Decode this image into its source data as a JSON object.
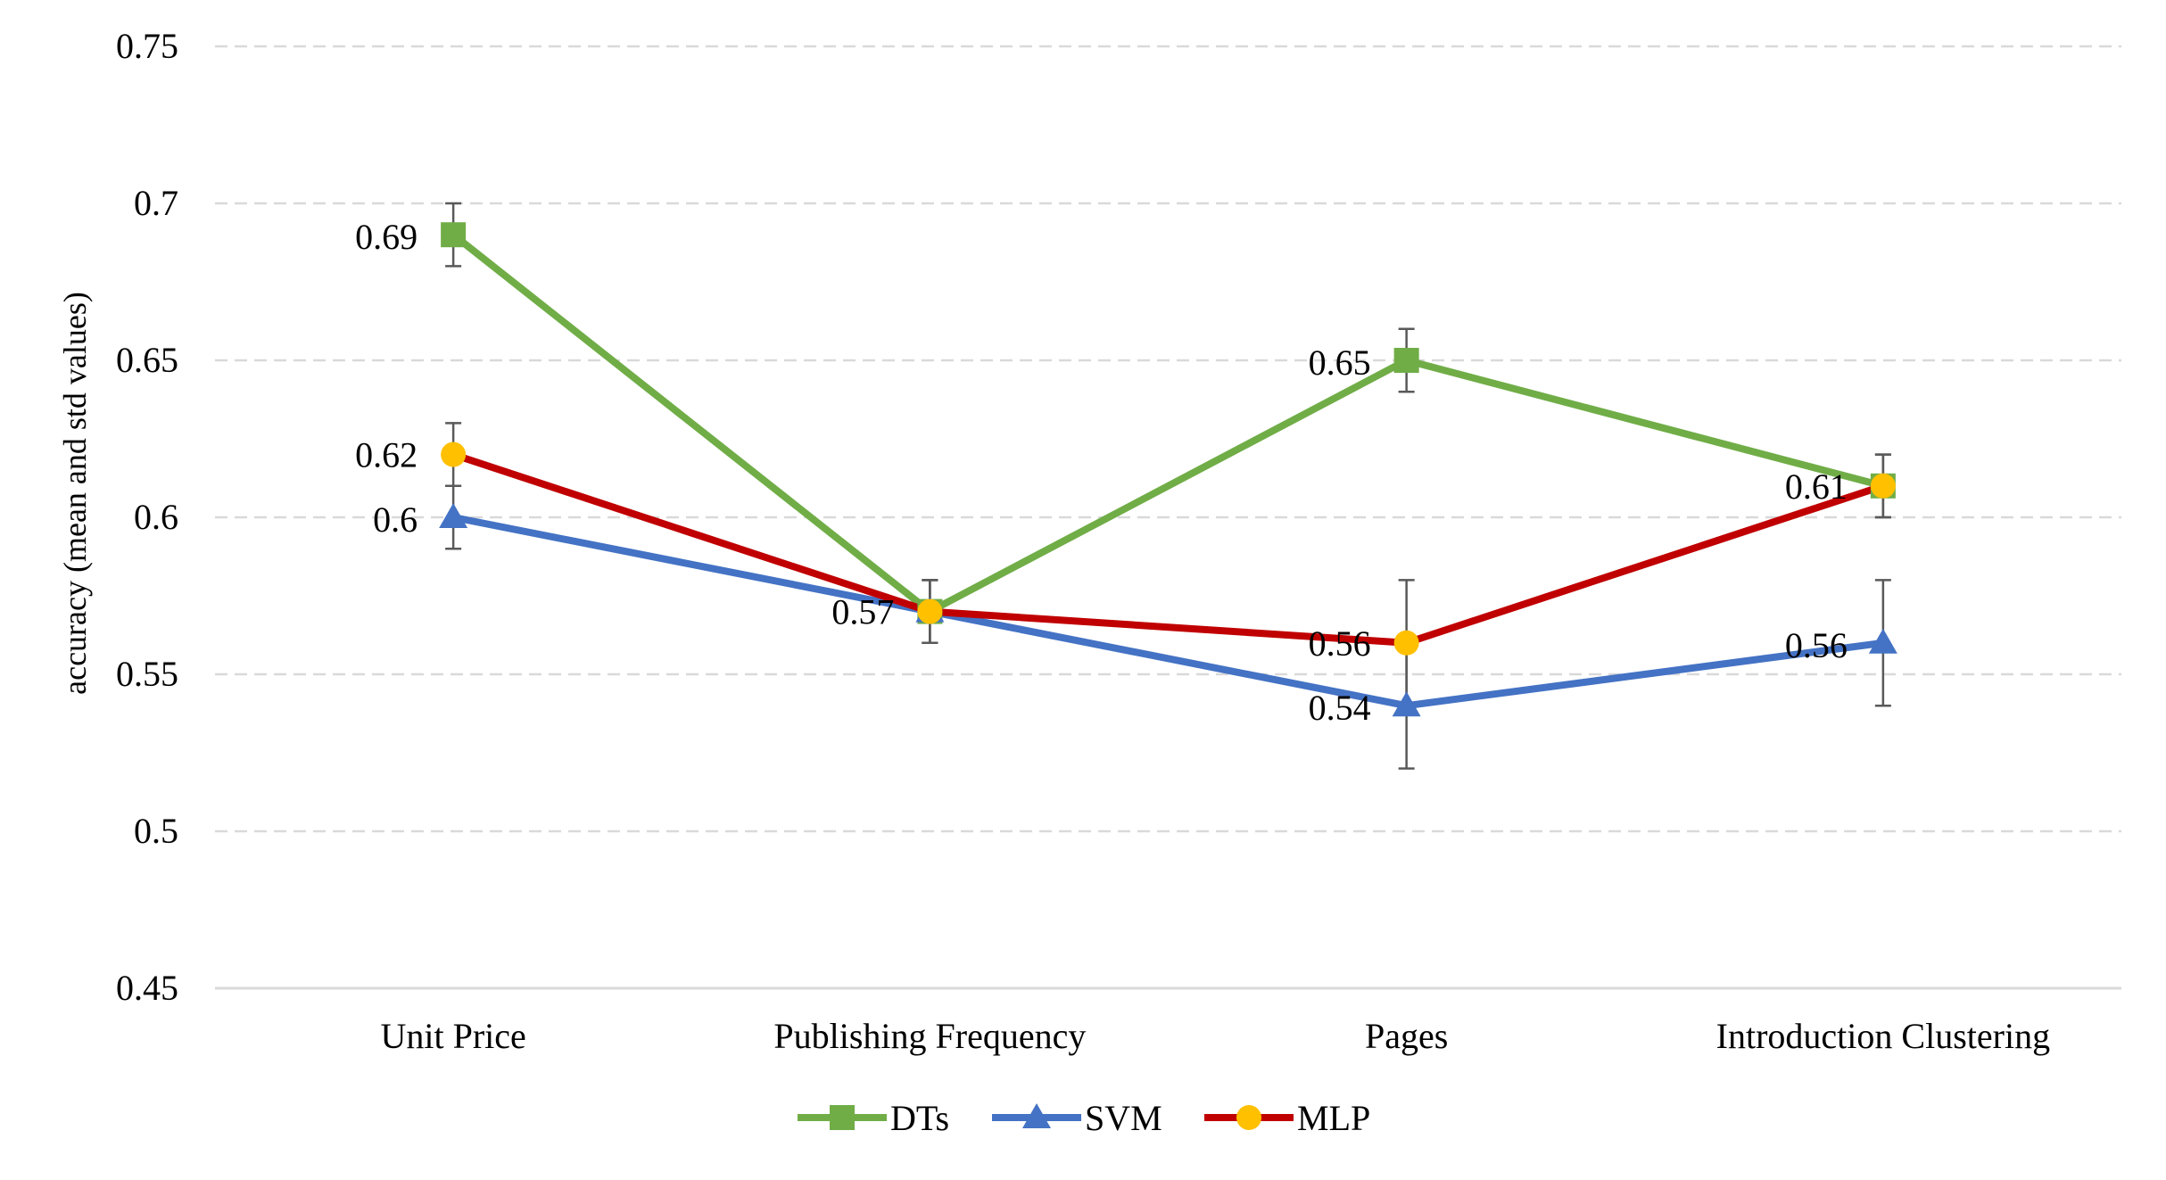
{
  "chart_data": {
    "type": "line",
    "title": "",
    "xlabel": "",
    "ylabel": "accuracy (mean and std values)",
    "categories": [
      "Unit Price",
      "Publishing Frequency",
      "Pages",
      "Introduction Clustering"
    ],
    "ylim": [
      0.45,
      0.75
    ],
    "yticks": [
      0.45,
      0.5,
      0.55,
      0.6,
      0.65,
      0.7,
      0.75
    ],
    "ytick_labels": [
      "0.45",
      "0.5",
      "0.55",
      "0.6",
      "0.65",
      "0.7",
      "0.75"
    ],
    "grid": "horizontal dashed",
    "legend_position": "bottom",
    "series": [
      {
        "name": "DTs",
        "color": "#70AD47",
        "marker": "square",
        "values": [
          0.69,
          0.57,
          0.65,
          0.61
        ],
        "std": [
          0.01,
          0.01,
          0.01,
          0.01
        ],
        "labels": [
          "0.69",
          "",
          "0.65",
          ""
        ]
      },
      {
        "name": "SVM",
        "color": "#4472C4",
        "marker": "triangle",
        "values": [
          0.6,
          0.57,
          0.54,
          0.56
        ],
        "std": [
          0.01,
          0.01,
          0.02,
          0.02
        ],
        "labels": [
          "0.6",
          "",
          "0.54",
          "0.56"
        ]
      },
      {
        "name": "MLP",
        "color": "#C00000",
        "marker_color": "#FFC000",
        "marker": "circle",
        "values": [
          0.62,
          0.57,
          0.56,
          0.61
        ],
        "std": [
          0.01,
          0.01,
          0.02,
          0.01
        ],
        "labels": [
          "0.62",
          "0.57",
          "0.56",
          "0.61"
        ]
      }
    ]
  }
}
